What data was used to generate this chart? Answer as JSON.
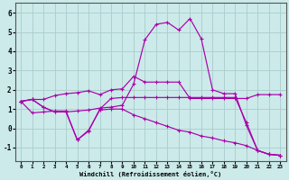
{
  "xlabel": "Windchill (Refroidissement éolien,°C)",
  "background_color": "#cceaea",
  "grid_color": "#aacccc",
  "line_color": "#aa00aa",
  "x_ticks": [
    0,
    1,
    2,
    3,
    4,
    5,
    6,
    7,
    8,
    9,
    10,
    11,
    12,
    13,
    14,
    15,
    16,
    17,
    18,
    19,
    20,
    21,
    22,
    23
  ],
  "y_ticks": [
    -1,
    0,
    1,
    2,
    3,
    4,
    5,
    6
  ],
  "ylim": [
    -1.7,
    6.5
  ],
  "xlim": [
    -0.5,
    23.5
  ],
  "lines": [
    {
      "x": [
        0,
        1,
        2,
        3,
        4,
        5,
        6,
        7,
        8,
        9,
        10,
        11,
        12,
        13,
        14,
        15,
        16,
        17,
        18,
        19,
        20,
        21,
        22,
        23
      ],
      "y": [
        1.4,
        1.5,
        1.1,
        0.85,
        0.85,
        0.9,
        0.95,
        1.05,
        1.1,
        1.2,
        2.3,
        4.6,
        5.4,
        5.5,
        5.1,
        5.7,
        4.65,
        2.0,
        1.8,
        1.8,
        0.15,
        -1.15,
        -1.35,
        -1.4
      ]
    },
    {
      "x": [
        0,
        1,
        2,
        3,
        4,
        5,
        6,
        7,
        8,
        9,
        10,
        11,
        12,
        13,
        14,
        15,
        16,
        17,
        18,
        19,
        20,
        21,
        22,
        23
      ],
      "y": [
        1.4,
        1.5,
        1.5,
        1.7,
        1.8,
        1.85,
        1.95,
        1.75,
        2.0,
        2.05,
        2.7,
        2.4,
        2.4,
        2.4,
        2.4,
        1.55,
        1.55,
        1.55,
        1.55,
        1.55,
        1.55,
        1.75,
        1.75,
        1.75
      ]
    },
    {
      "x": [
        0,
        1,
        2,
        3,
        4,
        5,
        6,
        7,
        8,
        9,
        10,
        11,
        12,
        13,
        14,
        15,
        16,
        17,
        18,
        19,
        20,
        21,
        22,
        23
      ],
      "y": [
        1.4,
        0.8,
        0.85,
        0.9,
        0.9,
        -0.6,
        -0.1,
        0.95,
        1.0,
        1.0,
        0.7,
        0.5,
        0.3,
        0.1,
        -0.1,
        -0.2,
        -0.4,
        -0.5,
        -0.65,
        -0.75,
        -0.9,
        -1.15,
        -1.35,
        -1.4
      ]
    },
    {
      "x": [
        0,
        1,
        2,
        3,
        4,
        5,
        6,
        7,
        8,
        9,
        10,
        11,
        12,
        13,
        14,
        15,
        16,
        17,
        18,
        19,
        20,
        21,
        22,
        23
      ],
      "y": [
        1.4,
        1.5,
        1.1,
        0.85,
        0.85,
        -0.6,
        -0.15,
        1.0,
        1.55,
        1.6,
        1.6,
        1.6,
        1.6,
        1.6,
        1.6,
        1.6,
        1.6,
        1.6,
        1.6,
        1.6,
        0.3,
        -1.15,
        -1.35,
        -1.4
      ]
    }
  ]
}
